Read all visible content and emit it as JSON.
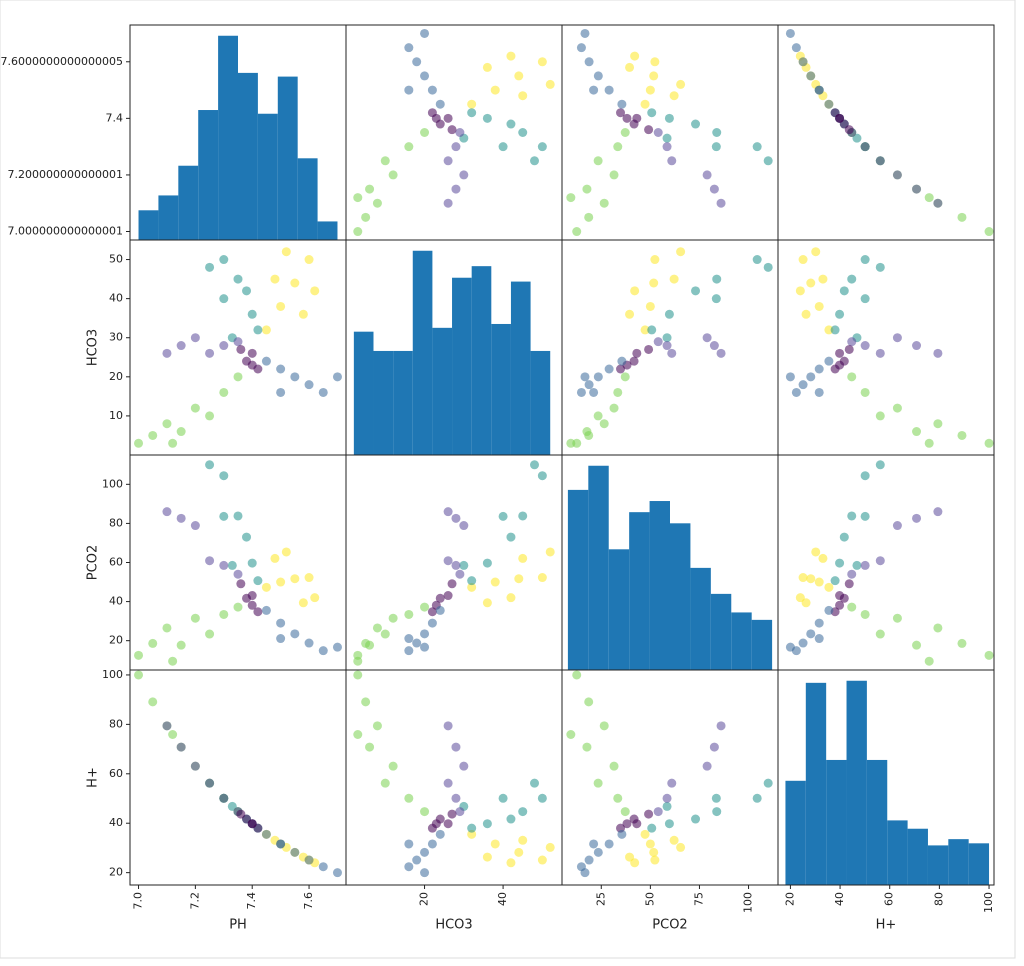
{
  "chart_data": {
    "type": "scatter_matrix",
    "variables": [
      {
        "name": "PH",
        "lim": [
          6.97,
          7.73
        ],
        "yticks": [
          {
            "value": 7.0,
            "label": "7.000000000000001"
          },
          {
            "value": 7.2,
            "label": "7.200000000000001"
          },
          7.4,
          {
            "value": 7.6,
            "label": "7.6000000000000005"
          }
        ],
        "xticks": [
          {
            "value": 7.0,
            "label": "7.0"
          },
          7.2,
          7.4,
          7.6
        ],
        "bins": [
          7.0,
          7.07,
          7.14,
          7.21,
          7.28,
          7.35,
          7.42,
          7.49,
          7.56,
          7.63,
          7.7
        ],
        "counts": [
          8,
          12,
          20,
          35,
          55,
          45,
          34,
          44,
          22,
          5
        ]
      },
      {
        "name": "HCO3",
        "lim": [
          0,
          55
        ],
        "yticks": [
          10,
          20,
          30,
          40,
          50
        ],
        "xticks": [
          20,
          40
        ],
        "bins": [
          2,
          7,
          12,
          17,
          22,
          27,
          32,
          37,
          42,
          47,
          52
        ],
        "counts": [
          32,
          27,
          27,
          53,
          33,
          46,
          49,
          34,
          45,
          27
        ]
      },
      {
        "name": "PCO2",
        "lim": [
          5,
          115
        ],
        "yticks": [
          20,
          40,
          60,
          80,
          100
        ],
        "xticks": [
          25,
          50,
          75,
          100
        ],
        "bins": [
          8,
          18.4,
          28.8,
          39.2,
          49.6,
          60,
          70.4,
          80.8,
          91.2,
          101.6,
          112
        ],
        "counts": [
          97,
          110,
          65,
          85,
          91,
          79,
          55,
          41,
          31,
          27
        ]
      },
      {
        "name": "H+",
        "lim": [
          15,
          102
        ],
        "yticks": [
          20,
          40,
          60,
          80,
          100
        ],
        "xticks": [
          20,
          40,
          60,
          80,
          100
        ],
        "bins": [
          18,
          26.2,
          34.4,
          42.6,
          50.8,
          59,
          67.2,
          75.4,
          83.6,
          91.8,
          100
        ],
        "counts": [
          50,
          97,
          60,
          98,
          60,
          31,
          27,
          19,
          22,
          20
        ]
      }
    ],
    "hist_color": "#1f77b4",
    "series": [
      {
        "color": "#fde725",
        "values": [
          [
            7.45,
            32,
            47.3,
            35.5
          ],
          [
            7.5,
            38,
            50.0,
            31.6
          ],
          [
            7.55,
            44,
            51.7,
            28.2
          ],
          [
            7.6,
            50,
            52.3,
            25.1
          ],
          [
            7.48,
            45,
            62.1,
            33.1
          ],
          [
            7.52,
            52,
            65.4,
            30.2
          ],
          [
            7.62,
            42,
            42.0,
            24.0
          ],
          [
            7.58,
            36,
            39.4,
            26.3
          ]
        ]
      },
      {
        "color": "#21918c",
        "values": [
          [
            7.3,
            40,
            83.6,
            50.1
          ],
          [
            7.35,
            45,
            83.8,
            44.7
          ],
          [
            7.4,
            36,
            59.7,
            39.8
          ],
          [
            7.25,
            48,
            110,
            56.2
          ],
          [
            7.3,
            50,
            104.4,
            50.1
          ],
          [
            7.42,
            32,
            50.7,
            38.0
          ],
          [
            7.38,
            42,
            73.0,
            41.7
          ],
          [
            7.33,
            30,
            58.5,
            46.8
          ]
        ]
      },
      {
        "color": "#7ad151",
        "values": [
          [
            7.0,
            3,
            12.5,
            100
          ],
          [
            7.05,
            5,
            18.6,
            89.1
          ],
          [
            7.1,
            8,
            26.5,
            79.4
          ],
          [
            7.15,
            6,
            17.7,
            70.8
          ],
          [
            7.2,
            12,
            31.5,
            63.1
          ],
          [
            7.25,
            10,
            23.4,
            56.2
          ],
          [
            7.3,
            16,
            33.4,
            50.1
          ],
          [
            7.35,
            20,
            37.2,
            44.7
          ],
          [
            7.12,
            3,
            9.5,
            75.9
          ]
        ]
      },
      {
        "color": "#5b4a9b",
        "values": [
          [
            7.1,
            26,
            86.0,
            79.4
          ],
          [
            7.15,
            28,
            82.6,
            70.8
          ],
          [
            7.2,
            30,
            78.9,
            63.1
          ],
          [
            7.25,
            26,
            60.9,
            56.2
          ],
          [
            7.3,
            28,
            58.5,
            50.1
          ],
          [
            7.35,
            29,
            54.0,
            44.7
          ]
        ]
      },
      {
        "color": "#440154",
        "values": [
          [
            7.38,
            24,
            41.7,
            41.7
          ],
          [
            7.4,
            26,
            43.1,
            39.8
          ],
          [
            7.42,
            22,
            34.8,
            38.0
          ],
          [
            7.4,
            23,
            38.1,
            39.8
          ],
          [
            7.36,
            27,
            49.1,
            43.7
          ]
        ]
      },
      {
        "color": "#3b6a9b",
        "values": [
          [
            7.5,
            22,
            29.0,
            31.6
          ],
          [
            7.55,
            20,
            23.5,
            28.2
          ],
          [
            7.6,
            18,
            18.8,
            25.1
          ],
          [
            7.65,
            16,
            14.9,
            22.4
          ],
          [
            7.7,
            20,
            16.7,
            20.0
          ],
          [
            7.5,
            16,
            21.1,
            31.6
          ],
          [
            7.45,
            24,
            35.5,
            35.5
          ]
        ]
      }
    ]
  }
}
